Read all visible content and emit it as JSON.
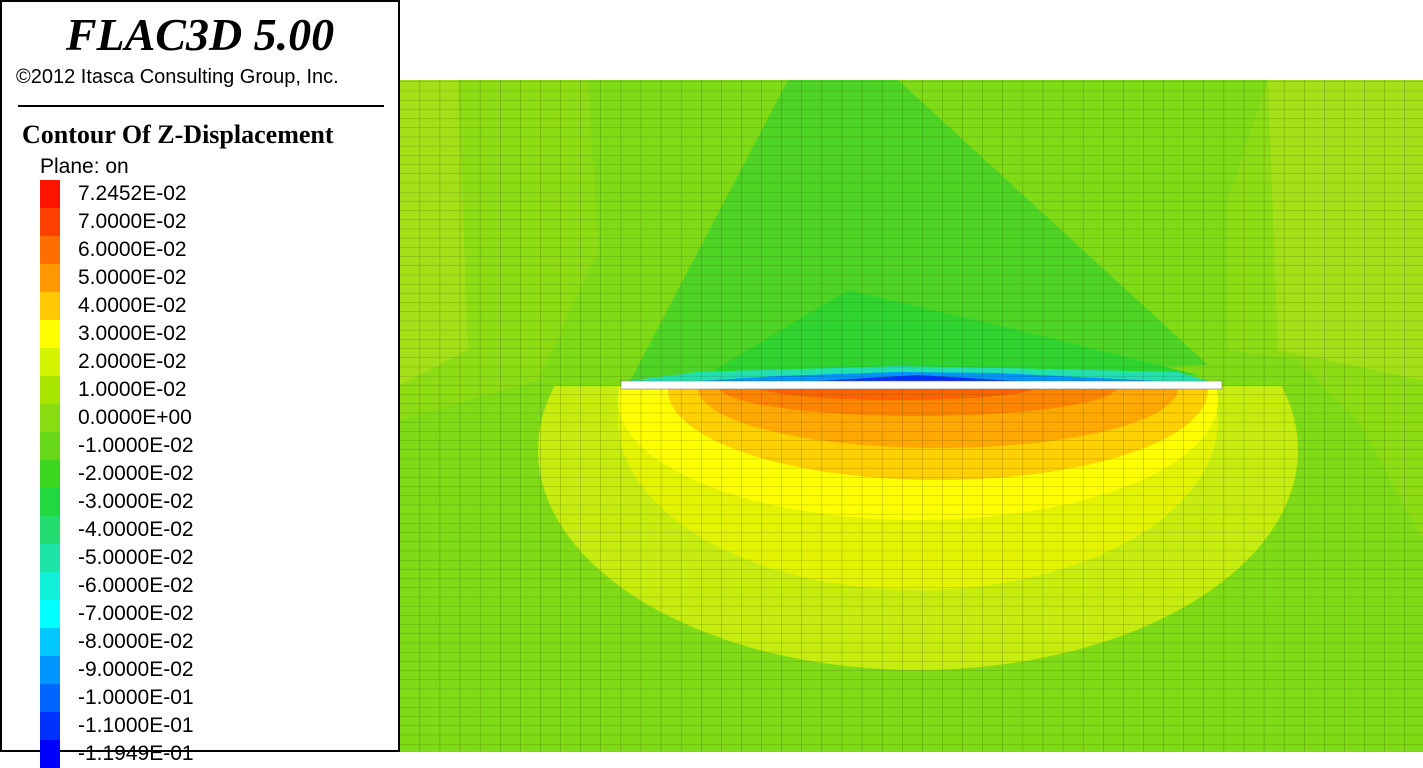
{
  "header": {
    "title": "FLAC3D 5.00",
    "copyright": "©2012 Itasca Consulting Group, Inc."
  },
  "legend": {
    "title": "Contour Of Z-Displacement",
    "plane": "Plane: on",
    "items": [
      {
        "label": "7.2452E-02",
        "color": "#ff1400"
      },
      {
        "label": "7.0000E-02",
        "color": "#ff4000"
      },
      {
        "label": "6.0000E-02",
        "color": "#ff6e00"
      },
      {
        "label": "5.0000E-02",
        "color": "#ff9800"
      },
      {
        "label": "4.0000E-02",
        "color": "#ffc800"
      },
      {
        "label": "3.0000E-02",
        "color": "#ffff00"
      },
      {
        "label": "2.0000E-02",
        "color": "#d4f400"
      },
      {
        "label": "1.0000E-02",
        "color": "#a8e600"
      },
      {
        "label": "0.0000E+00",
        "color": "#88dc10"
      },
      {
        "label": "-1.0000E-02",
        "color": "#66d818"
      },
      {
        "label": "-2.0000E-02",
        "color": "#3cd820"
      },
      {
        "label": "-3.0000E-02",
        "color": "#22d840"
      },
      {
        "label": "-4.0000E-02",
        "color": "#22dc70"
      },
      {
        "label": "-5.0000E-02",
        "color": "#1ee4a8"
      },
      {
        "label": "-6.0000E-02",
        "color": "#10f0d8"
      },
      {
        "label": "-7.0000E-02",
        "color": "#00ffff"
      },
      {
        "label": "-8.0000E-02",
        "color": "#00c8ff"
      },
      {
        "label": "-9.0000E-02",
        "color": "#0096ff"
      },
      {
        "label": "-1.0000E-01",
        "color": "#0064ff"
      },
      {
        "label": "-1.1000E-01",
        "color": "#0032ff"
      },
      {
        "label": "-1.1949E-01",
        "color": "#0000ff"
      }
    ]
  }
}
